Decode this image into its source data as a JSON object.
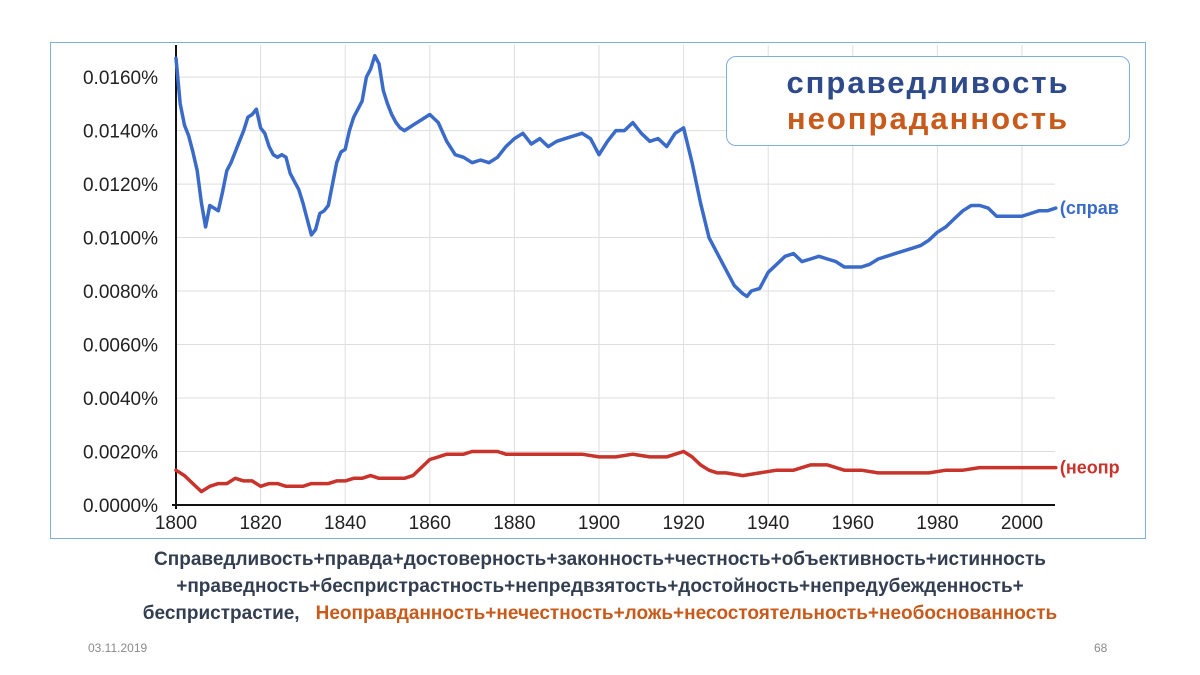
{
  "chart_data": {
    "type": "line",
    "y_tick_labels": [
      "0.0000%",
      "0.0020%",
      "0.0040%",
      "0.0060%",
      "0.0080%",
      "0.0100%",
      "0.0120%",
      "0.0140%",
      "0.0160%"
    ],
    "x_tick_labels": [
      "1800",
      "1820",
      "1840",
      "1860",
      "1880",
      "1900",
      "1920",
      "1940",
      "1960",
      "1980",
      "2000"
    ],
    "xlim": [
      1800,
      2008
    ],
    "ylim": [
      0,
      0.0172
    ],
    "grid": true,
    "legend": [
      "справедливость",
      "неопраданность"
    ],
    "series": [
      {
        "name": "справедливость",
        "end_label": "(справ",
        "color": "#3a6bc9",
        "x": [
          1800,
          1801,
          1802,
          1803,
          1804,
          1805,
          1806,
          1807,
          1808,
          1809,
          1810,
          1811,
          1812,
          1813,
          1814,
          1815,
          1816,
          1817,
          1818,
          1819,
          1820,
          1821,
          1822,
          1823,
          1824,
          1825,
          1826,
          1827,
          1828,
          1829,
          1830,
          1831,
          1832,
          1833,
          1834,
          1835,
          1836,
          1837,
          1838,
          1839,
          1840,
          1841,
          1842,
          1843,
          1844,
          1845,
          1846,
          1847,
          1848,
          1849,
          1850,
          1851,
          1852,
          1853,
          1854,
          1856,
          1858,
          1860,
          1862,
          1864,
          1866,
          1868,
          1870,
          1872,
          1874,
          1876,
          1878,
          1880,
          1882,
          1884,
          1886,
          1888,
          1890,
          1892,
          1894,
          1896,
          1898,
          1900,
          1902,
          1904,
          1906,
          1908,
          1910,
          1912,
          1914,
          1916,
          1918,
          1920,
          1922,
          1924,
          1926,
          1928,
          1930,
          1932,
          1934,
          1935,
          1936,
          1938,
          1940,
          1942,
          1944,
          1946,
          1948,
          1950,
          1952,
          1954,
          1956,
          1958,
          1960,
          1962,
          1964,
          1966,
          1968,
          1970,
          1972,
          1974,
          1976,
          1978,
          1980,
          1982,
          1984,
          1986,
          1988,
          1990,
          1992,
          1994,
          1996,
          1998,
          2000,
          2002,
          2004,
          2006,
          2008
        ],
        "values": [
          0.0167,
          0.015,
          0.0142,
          0.0138,
          0.0132,
          0.0125,
          0.0113,
          0.0104,
          0.0112,
          0.0111,
          0.011,
          0.0117,
          0.0125,
          0.0128,
          0.0132,
          0.0136,
          0.014,
          0.0145,
          0.0146,
          0.0148,
          0.0141,
          0.0139,
          0.0134,
          0.0131,
          0.013,
          0.0131,
          0.013,
          0.0124,
          0.0121,
          0.0118,
          0.0113,
          0.0107,
          0.0101,
          0.0103,
          0.0109,
          0.011,
          0.0112,
          0.012,
          0.0128,
          0.0132,
          0.0133,
          0.014,
          0.0145,
          0.0148,
          0.0151,
          0.016,
          0.0163,
          0.0168,
          0.0165,
          0.0155,
          0.015,
          0.0146,
          0.0143,
          0.0141,
          0.014,
          0.0142,
          0.0144,
          0.0146,
          0.0143,
          0.0136,
          0.0131,
          0.013,
          0.0128,
          0.0129,
          0.0128,
          0.013,
          0.0134,
          0.0137,
          0.0139,
          0.0135,
          0.0137,
          0.0134,
          0.0136,
          0.0137,
          0.0138,
          0.0139,
          0.0137,
          0.0131,
          0.0136,
          0.014,
          0.014,
          0.0143,
          0.0139,
          0.0136,
          0.0137,
          0.0134,
          0.0139,
          0.0141,
          0.0128,
          0.0113,
          0.01,
          0.0094,
          0.0088,
          0.0082,
          0.0079,
          0.0078,
          0.008,
          0.0081,
          0.0087,
          0.009,
          0.0093,
          0.0094,
          0.0091,
          0.0092,
          0.0093,
          0.0092,
          0.0091,
          0.0089,
          0.0089,
          0.0089,
          0.009,
          0.0092,
          0.0093,
          0.0094,
          0.0095,
          0.0096,
          0.0097,
          0.0099,
          0.0102,
          0.0104,
          0.0107,
          0.011,
          0.0112,
          0.0112,
          0.0111,
          0.0108,
          0.0108,
          0.0108,
          0.0108,
          0.0109,
          0.011,
          0.011,
          0.0111
        ]
      },
      {
        "name": "неопраданность",
        "end_label": "(неопр",
        "color": "#c8342b",
        "x": [
          1800,
          1802,
          1804,
          1806,
          1808,
          1810,
          1812,
          1814,
          1816,
          1818,
          1820,
          1822,
          1824,
          1826,
          1828,
          1830,
          1832,
          1834,
          1836,
          1838,
          1840,
          1842,
          1844,
          1846,
          1848,
          1850,
          1852,
          1854,
          1856,
          1858,
          1860,
          1862,
          1864,
          1866,
          1868,
          1870,
          1872,
          1874,
          1876,
          1878,
          1880,
          1884,
          1888,
          1892,
          1896,
          1900,
          1904,
          1908,
          1912,
          1916,
          1918,
          1920,
          1922,
          1924,
          1926,
          1928,
          1930,
          1934,
          1938,
          1942,
          1946,
          1950,
          1954,
          1958,
          1962,
          1966,
          1970,
          1974,
          1978,
          1982,
          1986,
          1990,
          1994,
          1998,
          2002,
          2006,
          2008
        ],
        "values": [
          0.0013,
          0.0011,
          0.0008,
          0.0005,
          0.0007,
          0.0008,
          0.0008,
          0.001,
          0.0009,
          0.0009,
          0.0007,
          0.0008,
          0.0008,
          0.0007,
          0.0007,
          0.0007,
          0.0008,
          0.0008,
          0.0008,
          0.0009,
          0.0009,
          0.001,
          0.001,
          0.0011,
          0.001,
          0.001,
          0.001,
          0.001,
          0.0011,
          0.0014,
          0.0017,
          0.0018,
          0.0019,
          0.0019,
          0.0019,
          0.002,
          0.002,
          0.002,
          0.002,
          0.0019,
          0.0019,
          0.0019,
          0.0019,
          0.0019,
          0.0019,
          0.0018,
          0.0018,
          0.0019,
          0.0018,
          0.0018,
          0.0019,
          0.002,
          0.0018,
          0.0015,
          0.0013,
          0.0012,
          0.0012,
          0.0011,
          0.0012,
          0.0013,
          0.0013,
          0.0015,
          0.0015,
          0.0013,
          0.0013,
          0.0012,
          0.0012,
          0.0012,
          0.0012,
          0.0013,
          0.0013,
          0.0014,
          0.0014,
          0.0014,
          0.0014,
          0.0014,
          0.0014
        ]
      }
    ]
  },
  "caption": {
    "line1": "Справедливость+правда+достоверность+законность+честность+объективность+истинность",
    "line2": "+праведность+беспристрастность+непредвзятость+достойность+непредубежденность+",
    "line3_dark": "беспристрастие,",
    "line3_orange": "Неоправданность+нечестность+ложь+несостоятельность+необоснованность"
  },
  "footer": {
    "date": "03.11.2019",
    "page": "68"
  }
}
